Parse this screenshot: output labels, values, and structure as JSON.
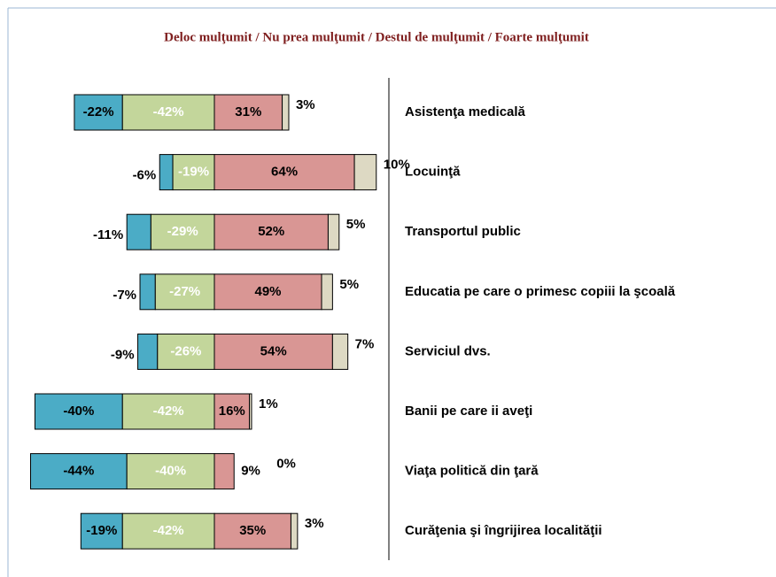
{
  "chart_data": {
    "type": "diverging_bar",
    "title": "Deloc mulţumit / Nu prea mulţumit / Destul de mulţumit / Foarte mulţumit",
    "categories": [
      "Asistenţa medicală",
      "Locuinţă",
      "Transportul public",
      "Educatia pe care o primesc copiii la şcoală",
      "Serviciul dvs.",
      "Banii pe care ii aveţi",
      "Viaţa politică din ţară",
      "Curăţenia şi îngrijirea localităţii"
    ],
    "series": [
      {
        "color": "#4bacc6",
        "values": [
          -22,
          -6,
          -11,
          -7,
          -9,
          -40,
          -44,
          -19
        ],
        "value_labels": [
          "-22%",
          "-6%",
          "-11%",
          "-7%",
          "-9%",
          "-40%",
          "-44%",
          "-19%"
        ]
      },
      {
        "color": "#c3d69b",
        "values": [
          -42,
          -19,
          -29,
          -27,
          -26,
          -42,
          -40,
          -42
        ],
        "value_labels": [
          "-42%",
          "-19%",
          "-29%",
          "-27%",
          "-26%",
          "-42%",
          "-40%",
          "-42%"
        ]
      },
      {
        "color": "#d99694",
        "values": [
          31,
          64,
          52,
          49,
          54,
          16,
          9,
          35
        ],
        "value_labels": [
          "31%",
          "64%",
          "52%",
          "49%",
          "54%",
          "16%",
          "9%",
          "35%"
        ]
      },
      {
        "color": "#ddd9c3",
        "values": [
          3,
          10,
          5,
          5,
          7,
          1,
          0,
          3
        ],
        "value_labels": [
          "3%",
          "10%",
          "5%",
          "5%",
          "7%",
          "1%",
          "0%",
          "3%"
        ]
      }
    ]
  }
}
